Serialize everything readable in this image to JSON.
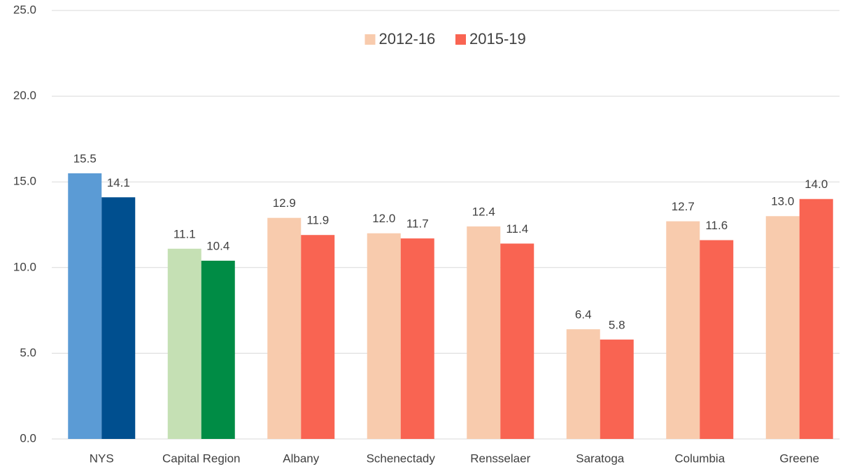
{
  "chart_data": {
    "type": "bar",
    "categories": [
      "NYS",
      "Capital Region",
      "Albany",
      "Schenectady",
      "Rensselaer",
      "Saratoga",
      "Columbia",
      "Greene"
    ],
    "series": [
      {
        "name": "2012-16",
        "color": "#f8cbad",
        "colors": [
          "#5b9bd5",
          "#c5e0b4",
          "#f8cbad",
          "#f8cbad",
          "#f8cbad",
          "#f8cbad",
          "#f8cbad",
          "#f8cbad"
        ],
        "values": [
          15.5,
          11.1,
          12.9,
          12,
          12.4,
          6.4,
          12.7,
          13
        ],
        "value_labels": [
          "15.5",
          "11.1",
          "12.9",
          "12.0",
          "12.4",
          "6.4",
          "12.7",
          "13.0"
        ]
      },
      {
        "name": "2015-19",
        "color": "#f96452",
        "colors": [
          "#004f8f",
          "#008c45",
          "#f96452",
          "#f96452",
          "#f96452",
          "#f96452",
          "#f96452",
          "#f96452"
        ],
        "values": [
          14.1,
          10.4,
          11.9,
          11.7,
          11.4,
          5.8,
          11.6,
          14
        ],
        "value_labels": [
          "14.1",
          "10.4",
          "11.9",
          "11.7",
          "11.4",
          "5.8",
          "11.6",
          "14.0"
        ]
      }
    ],
    "ylim": [
      0,
      25
    ],
    "yticks": [
      {
        "value": 0,
        "label": "0.0"
      },
      {
        "value": 5,
        "label": "5.0"
      },
      {
        "value": 10,
        "label": "10.0"
      },
      {
        "value": 15,
        "label": "15.0"
      },
      {
        "value": 20,
        "label": "20.0"
      },
      {
        "value": 25,
        "label": "25.0"
      }
    ],
    "grid": true,
    "legend": "top"
  }
}
